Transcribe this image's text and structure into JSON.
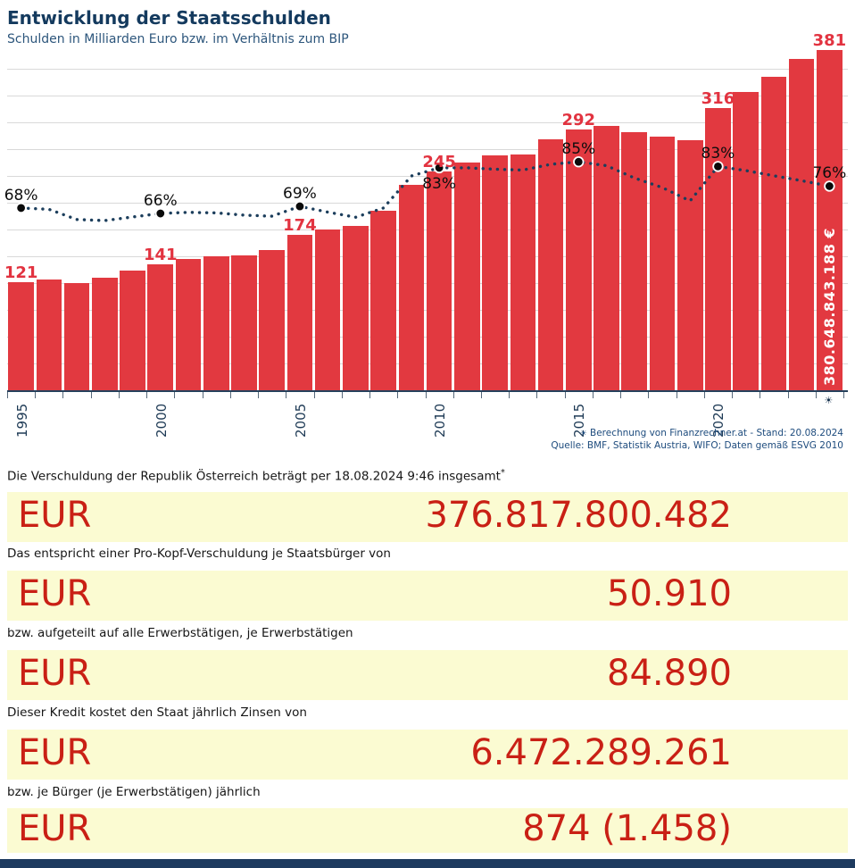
{
  "header": {
    "title": "Entwicklung der Staatsschulden",
    "subtitle": "Schulden in Milliarden Euro bzw. im Verhältnis zum BIP"
  },
  "colors": {
    "bar_red": "#e23940",
    "label_red": "#e23340",
    "value_red": "#c92015",
    "title_navy": "#143a5e",
    "line_navy": "#1c3e5c",
    "yellow_bg": "#fbfbd2",
    "footnote_blue": "#1d4b7d",
    "footer_strip": "#1d3a5f"
  },
  "chart_data": {
    "type": "bar",
    "title": "Entwicklung der Staatsschulden",
    "subtitle": "Schulden in Milliarden Euro bzw. im Verhältnis zum BIP",
    "years": [
      1995,
      1996,
      1997,
      1998,
      1999,
      2000,
      2001,
      2002,
      2003,
      2004,
      2005,
      2006,
      2007,
      2008,
      2009,
      2010,
      2011,
      2012,
      2013,
      2014,
      2015,
      2016,
      2017,
      2018,
      2019,
      2020,
      2021,
      2022,
      2023,
      2024
    ],
    "series": [
      {
        "name": "Staatsschulden in Mrd. Euro",
        "type": "bar",
        "values": [
          121,
          124,
          120,
          126,
          134,
          141,
          147,
          150,
          151,
          157,
          174,
          180,
          184,
          201,
          230,
          245,
          255,
          263,
          264,
          281,
          292,
          296,
          289,
          284,
          280,
          316,
          334,
          351,
          371,
          381
        ]
      },
      {
        "name": "Schulden im Verhältnis zum BIP (%)",
        "type": "line",
        "values": [
          68,
          67.5,
          63.8,
          63.4,
          64.7,
          66,
          66.4,
          66.2,
          65.4,
          65,
          68.6,
          66.5,
          64.6,
          68,
          79.7,
          82.7,
          82.7,
          82.2,
          81.9,
          84,
          84.9,
          83.5,
          79,
          75.5,
          70.6,
          83.2,
          81.7,
          79.8,
          78,
          76
        ]
      }
    ],
    "bar_value_labels": [
      {
        "year": 1995,
        "text": "121"
      },
      {
        "year": 2000,
        "text": "141"
      },
      {
        "year": 2005,
        "text": "174"
      },
      {
        "year": 2010,
        "text": "245"
      },
      {
        "year": 2015,
        "text": "292"
      },
      {
        "year": 2020,
        "text": "316"
      },
      {
        "year": 2024,
        "text": "381"
      }
    ],
    "pct_labels": [
      {
        "year": 1995,
        "text": "68%",
        "placement": "above"
      },
      {
        "year": 2000,
        "text": "66%",
        "placement": "above"
      },
      {
        "year": 2005,
        "text": "69%",
        "placement": "above"
      },
      {
        "year": 2010,
        "text": "83%",
        "placement": "below"
      },
      {
        "year": 2015,
        "text": "85%",
        "placement": "above"
      },
      {
        "year": 2020,
        "text": "83%",
        "placement": "above"
      },
      {
        "year": 2024,
        "text": "76%",
        "placement": "above"
      }
    ],
    "x_tick_labels": [
      "1995",
      "2000",
      "2005",
      "2010",
      "2015",
      "2020"
    ],
    "x_axis_symbol": "☀",
    "last_bar_annotation": "380.648.843.188 €",
    "ylim": [
      0,
      390
    ],
    "grid_step": 30,
    "grid": true,
    "legend": false
  },
  "footnote": {
    "marker": "☀",
    "line1": "Berechnung von Finanzrechner.at - Stand: 20.08.2024",
    "line2": "Quelle: BMF, Statistik Austria, WIFO; Daten gemäß ESVG 2010"
  },
  "rows": [
    {
      "caption": "Die Verschuldung der Republik Österreich beträgt per 18.08.2024 9:46 insgesamt",
      "caption_sup": "*",
      "currency": "EUR",
      "value": "376.817.800.482"
    },
    {
      "caption": "Das entspricht einer Pro-Kopf-Verschuldung je Staatsbürger von",
      "currency": "EUR",
      "value": "50.910"
    },
    {
      "caption": "bzw. aufgeteilt auf alle Erwerbstätigen, je Erwerbstätigen",
      "currency": "EUR",
      "value": "84.890"
    },
    {
      "caption": "Dieser Kredit kostet den Staat jährlich Zinsen von",
      "currency": "EUR",
      "value": "6.472.289.261"
    },
    {
      "caption": "bzw. je Bürger (je Erwerbstätigen) jährlich",
      "currency": "EUR",
      "value": "874 (1.458)"
    }
  ]
}
